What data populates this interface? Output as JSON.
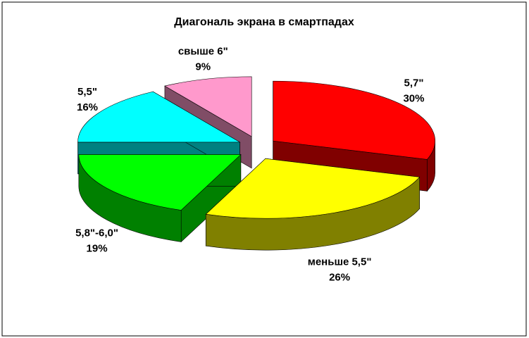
{
  "chart_data": {
    "type": "pie3d",
    "title": "Диагональ экрана в смартпадах",
    "categories": [
      "5,7\"",
      "меньше 5,5\"",
      "5,8\"-6,0\"",
      "5,5\"",
      "свыше 6\""
    ],
    "values": [
      30,
      26,
      19,
      16,
      9
    ],
    "value_labels": [
      "30%",
      "26%",
      "19%",
      "16%",
      "9%"
    ],
    "colors": [
      "#ff0000",
      "#ffff00",
      "#00ff00",
      "#00ffff",
      "#ff99cc"
    ]
  }
}
